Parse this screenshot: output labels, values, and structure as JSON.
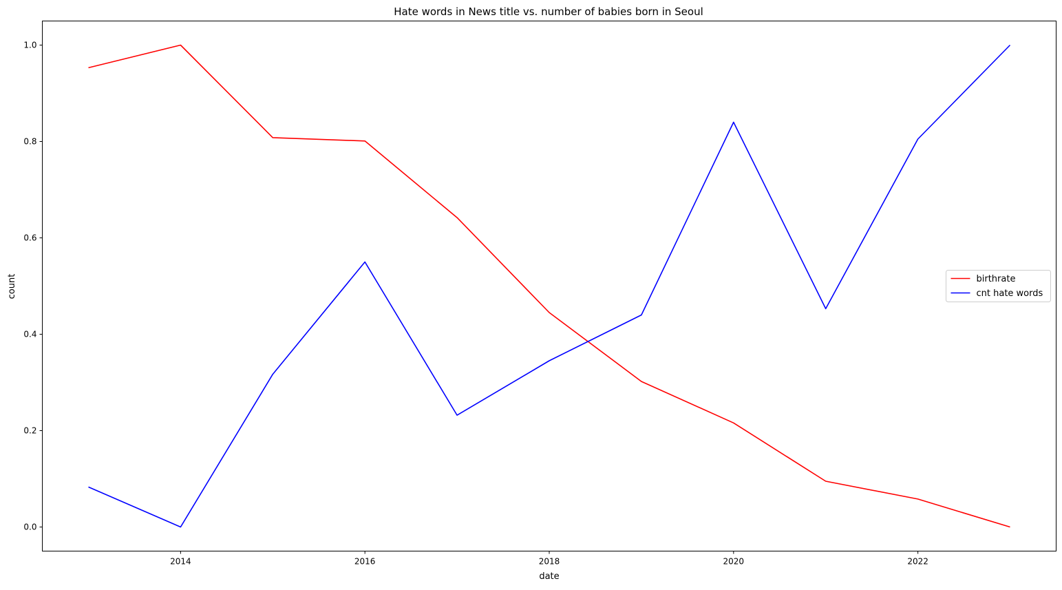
{
  "chart_data": {
    "type": "line",
    "title": "Hate words in News title vs. number of babies born in Seoul",
    "xlabel": "date",
    "ylabel": "count",
    "x": [
      2013,
      2014,
      2015,
      2016,
      2017,
      2018,
      2019,
      2020,
      2021,
      2022,
      2023
    ],
    "xlim": [
      2012.5,
      2023.5
    ],
    "ylim": [
      -0.05,
      1.05
    ],
    "xticks": [
      2014,
      2016,
      2018,
      2020,
      2022
    ],
    "xtick_labels": [
      "2014",
      "2016",
      "2018",
      "2020",
      "2022"
    ],
    "yticks": [
      0.0,
      0.2,
      0.4,
      0.6,
      0.8,
      1.0
    ],
    "ytick_labels": [
      "0.0",
      "0.2",
      "0.4",
      "0.6",
      "0.8",
      "1.0"
    ],
    "grid": false,
    "legend_position": "center-right",
    "series": [
      {
        "name": "birthrate",
        "color": "#ff0000",
        "values": [
          0.953,
          1.0,
          0.808,
          0.801,
          0.642,
          0.445,
          0.302,
          0.216,
          0.095,
          0.058,
          0.0
        ]
      },
      {
        "name": "cnt hate words",
        "color": "#0000ff",
        "values": [
          0.083,
          0.0,
          0.317,
          0.55,
          0.232,
          0.345,
          0.44,
          0.84,
          0.453,
          0.805,
          1.0
        ]
      }
    ]
  }
}
